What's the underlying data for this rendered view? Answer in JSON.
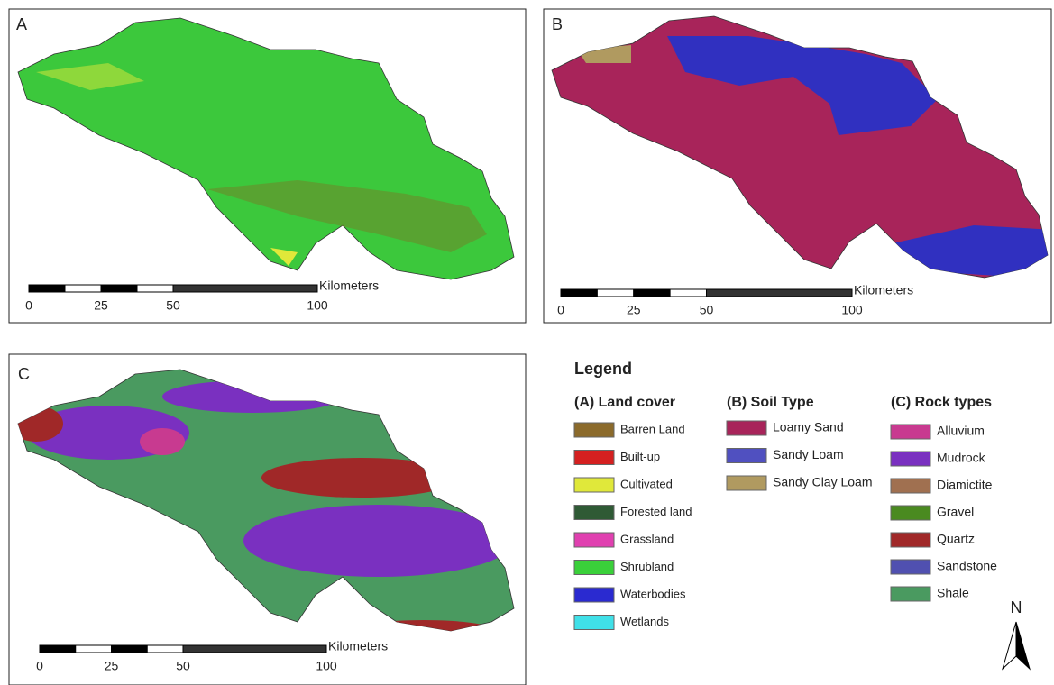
{
  "panels": [
    {
      "label": "A",
      "scale_bar": {
        "unit": "Kilometers",
        "ticks": [
          0,
          25,
          50,
          100
        ]
      }
    },
    {
      "label": "B",
      "scale_bar": {
        "unit": "Kilometers",
        "ticks": [
          0,
          25,
          50,
          100
        ]
      }
    },
    {
      "label": "C",
      "scale_bar": {
        "unit": "Kilometers",
        "ticks": [
          0,
          25,
          50,
          100
        ]
      }
    }
  ],
  "legend": {
    "title": "Legend",
    "groups": [
      {
        "title": "(A) Land cover",
        "items": [
          {
            "label": "Barren Land",
            "color": "#8b6a2b"
          },
          {
            "label": "Built-up",
            "color": "#d42020"
          },
          {
            "label": "Cultivated",
            "color": "#e0e83a"
          },
          {
            "label": "Forested land",
            "color": "#2f5a35"
          },
          {
            "label": "Grassland",
            "color": "#e040b0"
          },
          {
            "label": "Shrubland",
            "color": "#3ad03a"
          },
          {
            "label": "Waterbodies",
            "color": "#2a2ad0"
          },
          {
            "label": "Wetlands",
            "color": "#40e0e8"
          }
        ]
      },
      {
        "title": "(B) Soil Type",
        "items": [
          {
            "label": "Loamy Sand",
            "color": "#a8245a"
          },
          {
            "label": "Sandy Loam",
            "color": "#5050c0"
          },
          {
            "label": "Sandy Clay Loam",
            "color": "#b09a60"
          }
        ]
      },
      {
        "title": "(C) Rock types",
        "items": [
          {
            "label": "Alluvium",
            "color": "#c83a90"
          },
          {
            "label": "Mudrock",
            "color": "#7a30c0"
          },
          {
            "label": "Diamictite",
            "color": "#a07050"
          },
          {
            "label": "Gravel",
            "color": "#4a8a20"
          },
          {
            "label": "Quartz",
            "color": "#a02828"
          },
          {
            "label": "Sandstone",
            "color": "#5050b0"
          },
          {
            "label": "Shale",
            "color": "#4a9a60"
          }
        ]
      }
    ]
  },
  "north_arrow": "N"
}
